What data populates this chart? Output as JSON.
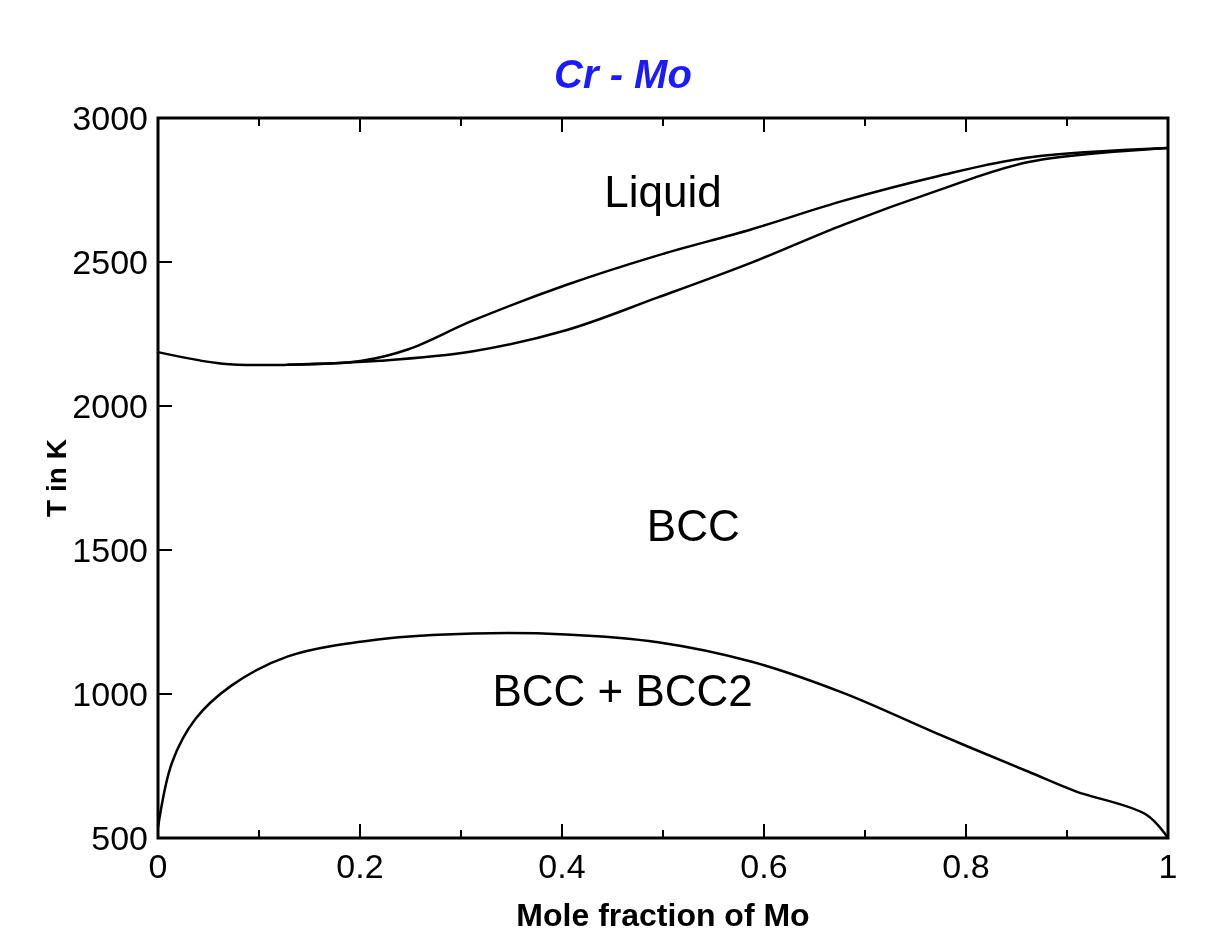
{
  "chart_data": {
    "type": "line",
    "title": "Cr - Mo",
    "xlabel": "Mole fraction of Mo",
    "ylabel": "T in K",
    "xlim": [
      0,
      1
    ],
    "ylim": [
      500,
      3000
    ],
    "xticks": [
      0,
      {
        "value": 0.1,
        "label": null
      },
      0.2,
      {
        "value": 0.3,
        "label": null
      },
      0.4,
      {
        "value": 0.5,
        "label": null
      },
      0.6,
      {
        "value": 0.7,
        "label": null
      },
      0.8,
      {
        "value": 0.9,
        "label": null
      },
      1
    ],
    "yticks": [
      500,
      1000,
      1500,
      2000,
      2500,
      3000
    ],
    "series": [
      {
        "color": "#000000",
        "x": [
          0,
          0.064,
          0.128,
          0.202,
          0.248,
          0.312,
          0.404,
          0.495,
          0.587,
          0.679,
          0.771,
          0.862,
          1
        ],
        "values": [
          2187,
          2147,
          2143,
          2157,
          2197,
          2297,
          2420,
          2523,
          2613,
          2713,
          2797,
          2863,
          2896
        ]
      },
      {
        "color": "#000000",
        "x": [
          0.128,
          0.22,
          0.312,
          0.404,
          0.495,
          0.587,
          0.679,
          0.771,
          0.862,
          1
        ],
        "values": [
          2143,
          2157,
          2190,
          2263,
          2377,
          2497,
          2630,
          2747,
          2847,
          2896
        ]
      },
      {
        "color": "#000000",
        "x": [
          0,
          0.014,
          0.037,
          0.073,
          0.128,
          0.22,
          0.312,
          0.404,
          0.495,
          0.587,
          0.679,
          0.771,
          0.862,
          0.908,
          0.979,
          1
        ],
        "values": [
          537,
          763,
          913,
          1030,
          1130,
          1190,
          1210,
          1207,
          1180,
          1113,
          1003,
          863,
          730,
          663,
          580,
          500
        ]
      }
    ],
    "annotations": [
      "Liquid",
      "BCC",
      "BCC + BCC2"
    ],
    "line_style": "solid"
  }
}
